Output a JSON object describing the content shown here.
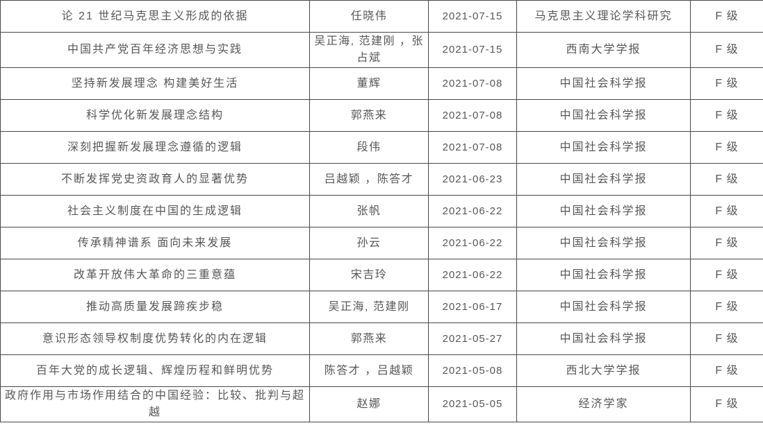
{
  "colors": {
    "border": "#474747",
    "text": "#575757",
    "background": "#ffffff"
  },
  "table": {
    "columns": [
      {
        "key": "title",
        "name": "article-title"
      },
      {
        "key": "authors",
        "name": "authors"
      },
      {
        "key": "date",
        "name": "publish-date"
      },
      {
        "key": "journal",
        "name": "journal-name"
      },
      {
        "key": "grade",
        "name": "grade"
      }
    ],
    "rows": [
      {
        "title": "论 21 世纪马克思主义形成的依据",
        "authors": "任晓伟",
        "date": "2021-07-15",
        "journal": "马克思主义理论学科研究",
        "grade": "F 级"
      },
      {
        "title": "中国共产党百年经济思想与实践",
        "authors": "吴正海, 范建刚 ，张占斌",
        "date": "2021-07-15",
        "journal": "西南大学学报",
        "grade": "F 级"
      },
      {
        "title": "坚持新发展理念 构建美好生活",
        "authors": "董辉",
        "date": "2021-07-08",
        "journal": "中国社会科学报",
        "grade": "F 级"
      },
      {
        "title": "科学优化新发展理念结构",
        "authors": "郭燕来",
        "date": "2021-07-08",
        "journal": "中国社会科学报",
        "grade": "F 级"
      },
      {
        "title": "深刻把握新发展理念遵循的逻辑",
        "authors": "段伟",
        "date": "2021-07-08",
        "journal": "中国社会科学报",
        "grade": "F 级"
      },
      {
        "title": "不断发挥党史资政育人的显著优势",
        "authors": "吕越颖 ，陈答才",
        "date": "2021-06-23",
        "journal": "中国社会科学报",
        "grade": "F 级"
      },
      {
        "title": "社会主义制度在中国的生成逻辑",
        "authors": "张帆",
        "date": "2021-06-22",
        "journal": "中国社会科学报",
        "grade": "F 级"
      },
      {
        "title": "传承精神谱系 面向未来发展",
        "authors": "孙云",
        "date": "2021-06-22",
        "journal": "中国社会科学报",
        "grade": "F 级"
      },
      {
        "title": "改革开放伟大革命的三重意蕴",
        "authors": "宋吉玲",
        "date": "2021-06-22",
        "journal": "中国社会科学报",
        "grade": "F 级"
      },
      {
        "title": "推动高质量发展蹄疾步稳",
        "authors": "吴正海, 范建刚",
        "date": "2021-06-17",
        "journal": "中国社会科学报",
        "grade": "F 级"
      },
      {
        "title": "意识形态领导权制度优势转化的内在逻辑",
        "authors": "郭燕来",
        "date": "2021-05-27",
        "journal": "中国社会科学报",
        "grade": "F 级"
      },
      {
        "title": "百年大党的成长逻辑、辉煌历程和鲜明优势",
        "authors": "陈答才 ，吕越颖",
        "date": "2021-05-08",
        "journal": "西北大学学报",
        "grade": "F 级"
      },
      {
        "title": "政府作用与市场作用结合的中国经验：比较、批判与超越",
        "authors": "赵娜",
        "date": "2021-05-05",
        "journal": "经济学家",
        "grade": "F 级"
      }
    ]
  }
}
